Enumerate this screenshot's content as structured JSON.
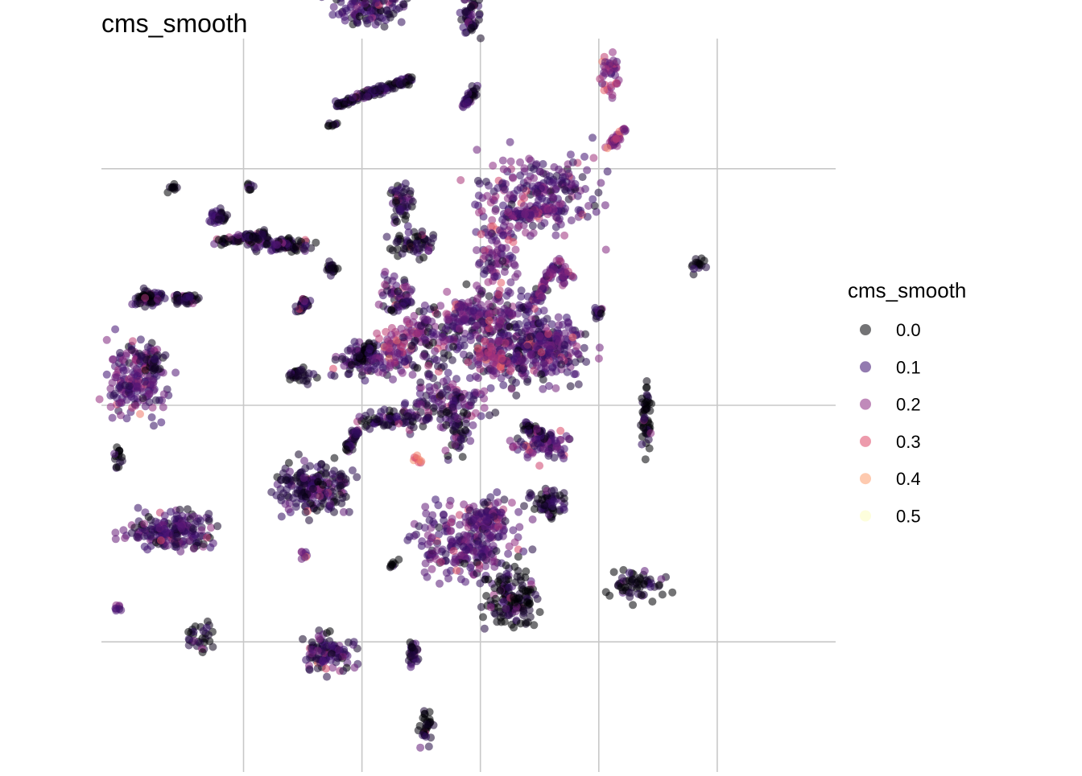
{
  "chart_data": {
    "type": "scatter",
    "title": "cms_smooth",
    "xlabel": "",
    "ylabel": "",
    "grid": true,
    "axis_ticks_visible": false,
    "legend": {
      "title": "cms_smooth",
      "placement": "right",
      "entries": [
        {
          "label": "0.0",
          "color": "#000004"
        },
        {
          "label": "0.1",
          "color": "#3b0f70"
        },
        {
          "label": "0.2",
          "color": "#8c2981"
        },
        {
          "label": "0.3",
          "color": "#de4968"
        },
        {
          "label": "0.4",
          "color": "#fe9f6d"
        },
        {
          "label": "0.5",
          "color": "#fcfdbf"
        }
      ]
    },
    "xlim": [
      -11,
      20
    ],
    "ylim": [
      -15.5,
      15.5
    ],
    "x_gridlines": [
      -5,
      0,
      5,
      10,
      15
    ],
    "y_gridlines": [
      -10,
      0,
      10
    ],
    "clusters": [
      {
        "x": -6.1,
        "y": 8.0,
        "sx": 0.15,
        "sy": 0.15,
        "n": 30,
        "v": 0.08
      },
      {
        "x": -9.0,
        "y": 4.5,
        "sx": 0.3,
        "sy": 0.15,
        "n": 60,
        "v": 0.03
      },
      {
        "x": -7.4,
        "y": 4.5,
        "sx": 0.3,
        "sy": 0.1,
        "n": 50,
        "v": 0.02
      },
      {
        "x": -8.0,
        "y": 9.2,
        "sx": 0.1,
        "sy": 0.1,
        "n": 10,
        "v": 0.0
      },
      {
        "x": -4.7,
        "y": 9.3,
        "sx": 0.1,
        "sy": 0.1,
        "n": 8,
        "v": 0.05
      },
      {
        "x": -3.4,
        "y": 6.8,
        "sx": 0.6,
        "sy": 0.15,
        "n": 90,
        "v": 0.05
      },
      {
        "x": -1.2,
        "y": 11.9,
        "sx": 0.1,
        "sy": 0.1,
        "n": 8,
        "v": 0.0
      },
      {
        "x": 0.2,
        "y": 16.8,
        "sx": 0.8,
        "sy": 0.4,
        "n": 110,
        "v": 0.08
      },
      {
        "x": 4.6,
        "y": 16.6,
        "sx": 0.2,
        "sy": 0.5,
        "n": 60,
        "v": 0.06
      },
      {
        "x": 10.5,
        "y": 14.0,
        "sx": 0.2,
        "sy": 0.4,
        "n": 40,
        "v": 0.18
      },
      {
        "x": -1.3,
        "y": 5.8,
        "sx": 0.15,
        "sy": 0.15,
        "n": 20,
        "v": 0.02
      },
      {
        "x": 1.7,
        "y": 8.6,
        "sx": 0.2,
        "sy": 0.5,
        "n": 50,
        "v": 0.06
      },
      {
        "x": 2.2,
        "y": 6.8,
        "sx": 0.5,
        "sy": 0.3,
        "n": 60,
        "v": 0.05
      },
      {
        "x": 1.5,
        "y": 4.8,
        "sx": 0.4,
        "sy": 0.4,
        "n": 40,
        "v": 0.1
      },
      {
        "x": -9.5,
        "y": 1.0,
        "sx": 0.6,
        "sy": 0.8,
        "n": 170,
        "v": 0.12
      },
      {
        "x": -9.0,
        "y": 2.0,
        "sx": 0.3,
        "sy": 0.3,
        "n": 40,
        "v": 0.05
      },
      {
        "x": -2.6,
        "y": 1.3,
        "sx": 0.3,
        "sy": 0.15,
        "n": 30,
        "v": 0.02
      },
      {
        "x": -10.3,
        "y": -2.2,
        "sx": 0.1,
        "sy": 0.3,
        "n": 15,
        "v": 0.0
      },
      {
        "x": -7.9,
        "y": -5.3,
        "sx": 0.9,
        "sy": 0.4,
        "n": 190,
        "v": 0.1
      },
      {
        "x": -2.1,
        "y": -3.5,
        "sx": 0.8,
        "sy": 0.5,
        "n": 200,
        "v": 0.06
      },
      {
        "x": -2.5,
        "y": -6.3,
        "sx": 0.1,
        "sy": 0.1,
        "n": 8,
        "v": 0.15
      },
      {
        "x": -10.3,
        "y": -8.6,
        "sx": 0.1,
        "sy": 0.1,
        "n": 8,
        "v": 0.15
      },
      {
        "x": -6.8,
        "y": -9.7,
        "sx": 0.3,
        "sy": 0.3,
        "n": 30,
        "v": 0.02
      },
      {
        "x": -1.4,
        "y": -10.5,
        "sx": 0.5,
        "sy": 0.4,
        "n": 100,
        "v": 0.08
      },
      {
        "x": 2.2,
        "y": -10.5,
        "sx": 0.15,
        "sy": 0.3,
        "n": 30,
        "v": 0.06
      },
      {
        "x": 2.7,
        "y": -13.5,
        "sx": 0.15,
        "sy": 0.4,
        "n": 30,
        "v": 0.0
      },
      {
        "x": 1.3,
        "y": -6.7,
        "sx": 0.1,
        "sy": 0.1,
        "n": 8,
        "v": 0.0
      },
      {
        "x": 2.3,
        "y": -2.3,
        "sx": 0.1,
        "sy": 0.1,
        "n": 8,
        "v": 0.32
      },
      {
        "x": 4.5,
        "y": -5.8,
        "sx": 1.0,
        "sy": 0.8,
        "n": 250,
        "v": 0.12
      },
      {
        "x": 5.5,
        "y": -4.6,
        "sx": 0.4,
        "sy": 0.4,
        "n": 60,
        "v": 0.12
      },
      {
        "x": 6.3,
        "y": -8.2,
        "sx": 0.5,
        "sy": 0.6,
        "n": 140,
        "v": 0.02
      },
      {
        "x": 7.6,
        "y": -1.6,
        "sx": 0.6,
        "sy": 0.3,
        "n": 80,
        "v": 0.12
      },
      {
        "x": 7.9,
        "y": -4.1,
        "sx": 0.4,
        "sy": 0.3,
        "n": 60,
        "v": 0.05
      },
      {
        "x": 12.0,
        "y": -0.4,
        "sx": 0.1,
        "sy": 0.7,
        "n": 50,
        "v": 0.0
      },
      {
        "x": 14.2,
        "y": 5.9,
        "sx": 0.15,
        "sy": 0.15,
        "n": 15,
        "v": 0.02
      },
      {
        "x": 11.7,
        "y": -7.6,
        "sx": 0.6,
        "sy": 0.3,
        "n": 60,
        "v": 0.02
      },
      {
        "x": 10.0,
        "y": 3.9,
        "sx": 0.1,
        "sy": 0.15,
        "n": 15,
        "v": 0.05
      },
      {
        "x": 8.6,
        "y": 5.5,
        "sx": 0.15,
        "sy": 0.2,
        "n": 25,
        "v": 0.15
      },
      {
        "x": 7.5,
        "y": 9.0,
        "sx": 1.2,
        "sy": 0.8,
        "n": 220,
        "v": 0.12
      },
      {
        "x": 5.8,
        "y": 6.5,
        "sx": 0.4,
        "sy": 1.0,
        "n": 90,
        "v": 0.15
      },
      {
        "x": 6.3,
        "y": 2.9,
        "sx": 1.2,
        "sy": 1.0,
        "n": 320,
        "v": 0.1
      },
      {
        "x": 8.0,
        "y": 2.3,
        "sx": 0.8,
        "sy": 0.6,
        "n": 140,
        "v": 0.12
      },
      {
        "x": 4.5,
        "y": 3.8,
        "sx": 0.6,
        "sy": 0.4,
        "n": 90,
        "v": 0.15
      },
      {
        "x": 3.6,
        "y": 0.1,
        "sx": 0.8,
        "sy": 0.6,
        "n": 120,
        "v": 0.1
      },
      {
        "x": 4.0,
        "y": -1.0,
        "sx": 0.3,
        "sy": 0.6,
        "n": 40,
        "v": 0.05
      },
      {
        "x": 1.2,
        "y": -0.6,
        "sx": 0.8,
        "sy": 0.2,
        "n": 70,
        "v": 0.05
      },
      {
        "x": 0.5,
        "y": 2.0,
        "sx": 0.8,
        "sy": 0.4,
        "n": 120,
        "v": 0.1
      },
      {
        "x": 1.5,
        "y": 2.5,
        "sx": 0.4,
        "sy": 0.4,
        "n": 40,
        "v": 0.22
      },
      {
        "x": 2.2,
        "y": 3.2,
        "sx": 0.3,
        "sy": 0.3,
        "n": 30,
        "v": 0.18
      },
      {
        "x": 3.0,
        "y": 2.5,
        "sx": 0.5,
        "sy": 0.8,
        "n": 70,
        "v": 0.08
      },
      {
        "x": 5.5,
        "y": 2.0,
        "sx": 0.4,
        "sy": 0.4,
        "n": 50,
        "v": 0.22
      }
    ],
    "lines": [
      {
        "x1": -1.1,
        "y1": 12.7,
        "x2": 2.1,
        "y2": 13.8,
        "n": 120,
        "v": 0.05
      },
      {
        "x1": 4.3,
        "y1": 12.7,
        "x2": 4.9,
        "y2": 13.5,
        "n": 40,
        "v": 0.06
      },
      {
        "x1": 10.4,
        "y1": 10.9,
        "x2": 11.1,
        "y2": 11.7,
        "n": 40,
        "v": 0.18
      },
      {
        "x1": -6.1,
        "y1": 6.9,
        "x2": -4.1,
        "y2": 7.2,
        "n": 70,
        "v": 0.04
      },
      {
        "x1": 1.2,
        "y1": 4.0,
        "x2": 2.0,
        "y2": 4.4,
        "n": 20,
        "v": 0.02
      },
      {
        "x1": 7.3,
        "y1": 4.4,
        "x2": 8.3,
        "y2": 6.2,
        "n": 60,
        "v": 0.15
      },
      {
        "x1": 6.1,
        "y1": 8.0,
        "x2": 8.2,
        "y2": 8.3,
        "n": 60,
        "v": 0.15
      },
      {
        "x1": -0.6,
        "y1": -1.9,
        "x2": -0.2,
        "y2": -1.0,
        "n": 40,
        "v": 0.05
      },
      {
        "x1": -2.3,
        "y1": 4.5,
        "x2": -2.7,
        "y2": 4.0,
        "n": 40,
        "v": 0.04
      },
      {
        "x1": -0.2,
        "y1": 2.0,
        "x2": 0.4,
        "y2": 2.5,
        "n": 40,
        "v": 0.02
      },
      {
        "x1": 6.9,
        "y1": -0.8,
        "x2": 7.7,
        "y2": -1.3,
        "n": 40,
        "v": 0.06
      }
    ]
  }
}
